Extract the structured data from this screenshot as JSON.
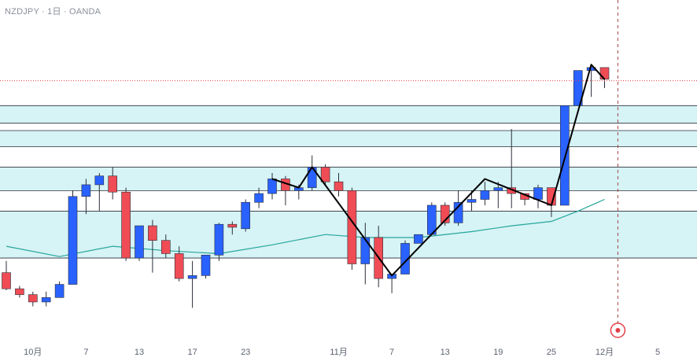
{
  "header": {
    "symbol_line": "NZDJPY · 1日 · OANDA"
  },
  "colors": {
    "up": "#2962ff",
    "down": "#f04c55",
    "zone_fill": "#d6f3f6",
    "zone_line": "#2a2e39",
    "ma_line": "#26a69a",
    "trend_line": "#000000",
    "price_line": "#e33f45",
    "cursor_line": "#a0453f",
    "bg": "#ffffff"
  },
  "chart_data": {
    "type": "candlestick",
    "title": "NZDJPY · 1日 · OANDA",
    "y_axis": "price (relative scale, no price axis shown)",
    "x_tick_labels": [
      "10月",
      "7",
      "13",
      "17",
      "23",
      "11月",
      "7",
      "13",
      "19",
      "25",
      "12月",
      "5"
    ],
    "candles": [
      {
        "o": 15.0,
        "h": 19.0,
        "l": 9.0,
        "c": 9.5
      },
      {
        "o": 9.5,
        "h": 10.5,
        "l": 6.5,
        "c": 7.5
      },
      {
        "o": 7.5,
        "h": 8.5,
        "l": 3.5,
        "c": 5.0
      },
      {
        "o": 5.0,
        "h": 8.5,
        "l": 3.5,
        "c": 6.5
      },
      {
        "o": 6.5,
        "h": 12.0,
        "l": 6.5,
        "c": 11.0
      },
      {
        "o": 11.0,
        "h": 43.0,
        "l": 11.0,
        "c": 41.0
      },
      {
        "o": 41.0,
        "h": 47.0,
        "l": 35.0,
        "c": 45.0
      },
      {
        "o": 45.0,
        "h": 49.0,
        "l": 36.0,
        "c": 48.0
      },
      {
        "o": 48.0,
        "h": 51.0,
        "l": 40.0,
        "c": 42.5
      },
      {
        "o": 42.5,
        "h": 44.0,
        "l": 19.0,
        "c": 20.0
      },
      {
        "o": 20.0,
        "h": 31.0,
        "l": 19.0,
        "c": 31.0
      },
      {
        "o": 31.0,
        "h": 33.0,
        "l": 15.0,
        "c": 26.0
      },
      {
        "o": 26.0,
        "h": 28.0,
        "l": 20.0,
        "c": 21.5
      },
      {
        "o": 21.5,
        "h": 24.0,
        "l": 12.0,
        "c": 13.0
      },
      {
        "o": 13.0,
        "h": 19.0,
        "l": 3.0,
        "c": 14.0
      },
      {
        "o": 14.0,
        "h": 21.0,
        "l": 13.0,
        "c": 21.0
      },
      {
        "o": 21.0,
        "h": 32.0,
        "l": 19.0,
        "c": 31.5
      },
      {
        "o": 31.5,
        "h": 32.5,
        "l": 28.0,
        "c": 30.5
      },
      {
        "o": 30.0,
        "h": 40.0,
        "l": 29.0,
        "c": 39.0
      },
      {
        "o": 39.0,
        "h": 44.0,
        "l": 37.0,
        "c": 42.0
      },
      {
        "o": 42.0,
        "h": 49.0,
        "l": 40.0,
        "c": 47.0
      },
      {
        "o": 47.0,
        "h": 48.0,
        "l": 38.0,
        "c": 43.0
      },
      {
        "o": 43.0,
        "h": 45.0,
        "l": 40.0,
        "c": 44.0
      },
      {
        "o": 44.0,
        "h": 55.0,
        "l": 43.0,
        "c": 51.0
      },
      {
        "o": 51.0,
        "h": 52.0,
        "l": 45.0,
        "c": 46.0
      },
      {
        "o": 46.0,
        "h": 49.0,
        "l": 41.0,
        "c": 43.0
      },
      {
        "o": 43.0,
        "h": 44.0,
        "l": 16.0,
        "c": 18.0
      },
      {
        "o": 18.0,
        "h": 32.0,
        "l": 11.0,
        "c": 27.0
      },
      {
        "o": 27.0,
        "h": 31.0,
        "l": 10.0,
        "c": 13.0
      },
      {
        "o": 13.0,
        "h": 14.0,
        "l": 8.0,
        "c": 14.5
      },
      {
        "o": 14.5,
        "h": 26.0,
        "l": 14.5,
        "c": 25.0
      },
      {
        "o": 25.0,
        "h": 28.0,
        "l": 25.0,
        "c": 28.0
      },
      {
        "o": 28.0,
        "h": 39.0,
        "l": 28.0,
        "c": 38.0
      },
      {
        "o": 38.0,
        "h": 39.0,
        "l": 31.0,
        "c": 32.0
      },
      {
        "o": 32.0,
        "h": 43.0,
        "l": 31.0,
        "c": 39.0
      },
      {
        "o": 39.0,
        "h": 43.0,
        "l": 36.0,
        "c": 40.0
      },
      {
        "o": 40.0,
        "h": 46.0,
        "l": 38.0,
        "c": 43.0
      },
      {
        "o": 43.0,
        "h": 46.0,
        "l": 37.0,
        "c": 44.0
      },
      {
        "o": 44.0,
        "h": 64.0,
        "l": 37.0,
        "c": 42.0
      },
      {
        "o": 42.0,
        "h": 42.0,
        "l": 38.0,
        "c": 40.0
      },
      {
        "o": 40.0,
        "h": 45.0,
        "l": 37.0,
        "c": 44.0
      },
      {
        "o": 44.0,
        "h": 44.0,
        "l": 34.0,
        "c": 38.0
      },
      {
        "o": 38.0,
        "h": 72.0,
        "l": 38.0,
        "c": 72.0
      },
      {
        "o": 72.0,
        "h": 84.0,
        "l": 72.0,
        "c": 84.0
      },
      {
        "o": 84.0,
        "h": 86.0,
        "l": 75.0,
        "c": 85.0
      },
      {
        "o": 85.0,
        "h": 85.0,
        "l": 78.0,
        "c": 81.0
      }
    ],
    "moving_average": [
      {
        "i": 0,
        "v": 24.0
      },
      {
        "i": 4,
        "v": 20.5
      },
      {
        "i": 8,
        "v": 24.0
      },
      {
        "i": 12,
        "v": 22.5
      },
      {
        "i": 16,
        "v": 21.5
      },
      {
        "i": 20,
        "v": 24.5
      },
      {
        "i": 24,
        "v": 28.0
      },
      {
        "i": 27,
        "v": 27.0
      },
      {
        "i": 31,
        "v": 27.0
      },
      {
        "i": 35,
        "v": 29.0
      },
      {
        "i": 38,
        "v": 31.0
      },
      {
        "i": 41,
        "v": 32.5
      },
      {
        "i": 43,
        "v": 36.0
      },
      {
        "i": 45,
        "v": 40.0
      }
    ],
    "trend_line": [
      {
        "i": 20,
        "v": 47.0
      },
      {
        "i": 22,
        "v": 44.0
      },
      {
        "i": 23,
        "v": 51.0
      },
      {
        "i": 29,
        "v": 14.0
      },
      {
        "i": 36,
        "v": 47.0
      },
      {
        "i": 41,
        "v": 38.0
      },
      {
        "i": 44,
        "v": 86.0
      },
      {
        "i": 45,
        "v": 81.0
      }
    ],
    "zones": [
      [
        66,
        72
      ],
      [
        58,
        63.5
      ],
      [
        43,
        51
      ],
      [
        20,
        36
      ]
    ],
    "current_price": 80.5,
    "cursor_index": 46,
    "y_range": [
      -2,
      100
    ]
  }
}
